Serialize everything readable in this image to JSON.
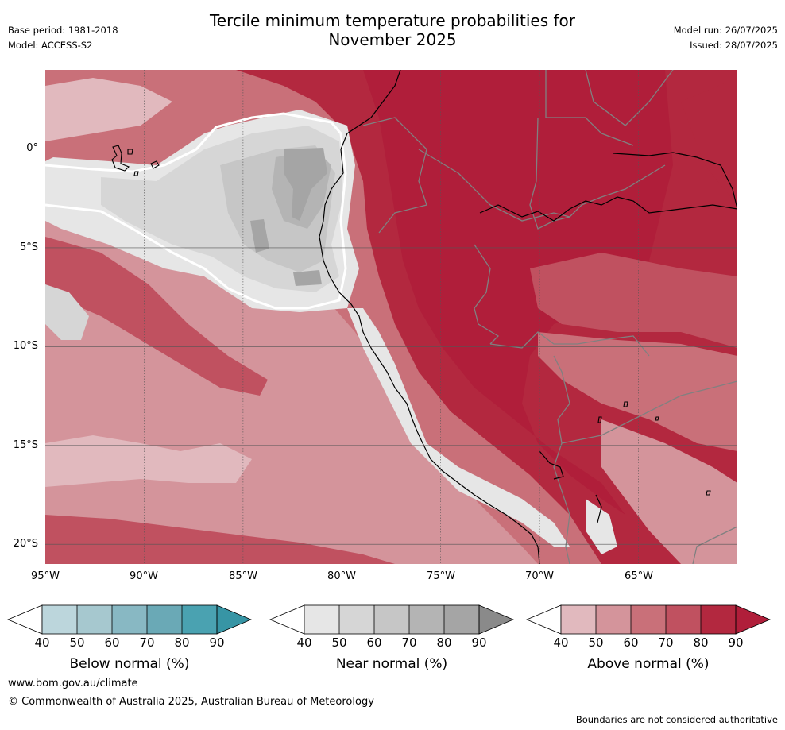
{
  "header": {
    "title_line1": "Tercile minimum temperature probabilities for",
    "title_line2": "November 2025",
    "base_period": "Base period: 1981-2018",
    "model": "Model: ACCESS-S2",
    "model_run": "Model run: 26/07/2025",
    "issued": "Issued: 28/07/2025"
  },
  "map": {
    "lat_labels": [
      "0°",
      "5°S",
      "10°S",
      "15°S",
      "20°S"
    ],
    "lon_labels": [
      "95°W",
      "90°W",
      "85°W",
      "80°W",
      "75°W",
      "70°W",
      "65°W"
    ],
    "lat_values": [
      0,
      -5,
      -10,
      -15,
      -20
    ],
    "lon_values": [
      -95,
      -90,
      -85,
      -80,
      -75,
      -70,
      -65
    ],
    "extent": {
      "west": -95,
      "east": -60,
      "north": 4,
      "south": -21
    },
    "colors": {
      "above": [
        "#e1b9be",
        "#d4949b",
        "#c97079",
        "#c05160",
        "#b3283f",
        "#b01e3a"
      ],
      "near": [
        "#e6e6e6",
        "#d6d6d6",
        "#c6c6c6",
        "#b4b4b4",
        "#a5a5a5",
        "#8a8a8a"
      ],
      "below": [
        "#bcd6dc",
        "#a6c8cf",
        "#88b8c3",
        "#6aa9b6",
        "#4aa2b1",
        "#3795a5"
      ],
      "border": "#808080",
      "coast": "#000000",
      "grid": "#555555"
    }
  },
  "colorbars": [
    {
      "label": "Below normal (%)",
      "ticks": [
        "40",
        "50",
        "60",
        "70",
        "80",
        "90"
      ],
      "palette": "below"
    },
    {
      "label": "Near normal (%)",
      "ticks": [
        "40",
        "50",
        "60",
        "70",
        "80",
        "90"
      ],
      "palette": "near"
    },
    {
      "label": "Above normal (%)",
      "ticks": [
        "40",
        "50",
        "60",
        "70",
        "80",
        "90"
      ],
      "palette": "above"
    }
  ],
  "footer": {
    "website": "www.bom.gov.au/climate",
    "copyright": "© Commonwealth of Australia 2025, Australian Bureau of Meteorology",
    "disclaimer": "Boundaries are not considered authoritative"
  }
}
